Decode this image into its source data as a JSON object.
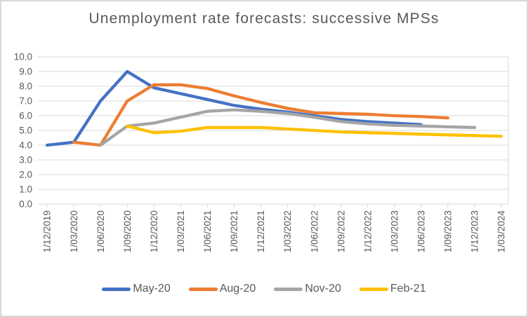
{
  "frame": {
    "background": "#FFFFFF",
    "border_color": "#D9D9D9"
  },
  "chart_data": {
    "type": "line",
    "title": "Unemployment rate forecasts: successive MPSs",
    "categories": [
      "1/12/2019",
      "1/03/2020",
      "1/06/2020",
      "1/09/2020",
      "1/12/2020",
      "1/03/2021",
      "1/06/2021",
      "1/09/2021",
      "1/12/2021",
      "1/03/2022",
      "1/06/2022",
      "1/09/2022",
      "1/12/2022",
      "1/03/2023",
      "1/06/2023",
      "1/09/2023",
      "1/12/2023",
      "1/03/2024"
    ],
    "y_tick_labels": [
      "10.0",
      "9.0",
      "8.0",
      "7.0",
      "6.0",
      "5.0",
      "4.0",
      "3.0",
      "2.0",
      "1.0",
      "0.0"
    ],
    "ylim": [
      0,
      10
    ],
    "grid": true,
    "legend_position": "bottom",
    "series": [
      {
        "name": "May-20",
        "color": "#4472C4",
        "start_index": 0,
        "values": [
          4.0,
          4.2,
          7.0,
          9.0,
          7.9,
          7.5,
          7.1,
          6.7,
          6.45,
          6.25,
          6.0,
          5.75,
          5.6,
          5.5,
          5.4
        ]
      },
      {
        "name": "Aug-20",
        "color": "#ED7D31",
        "start_index": 1,
        "values": [
          4.2,
          4.0,
          7.0,
          8.1,
          8.1,
          7.85,
          7.35,
          6.9,
          6.5,
          6.2,
          6.15,
          6.1,
          6.0,
          5.95,
          5.85
        ]
      },
      {
        "name": "Nov-20",
        "color": "#A5A5A5",
        "start_index": 2,
        "values": [
          4.0,
          5.3,
          5.5,
          5.9,
          6.3,
          6.4,
          6.3,
          6.15,
          5.9,
          5.6,
          5.45,
          5.35,
          5.3,
          5.25,
          5.2
        ]
      },
      {
        "name": "Feb-21",
        "color": "#FFC000",
        "start_index": 3,
        "values": [
          5.3,
          4.85,
          4.95,
          5.2,
          5.2,
          5.2,
          5.1,
          5.0,
          4.9,
          4.85,
          4.8,
          4.75,
          4.7,
          4.65,
          4.6
        ]
      }
    ],
    "colors": {
      "grid": "#D9D9D9",
      "axis": "#D9D9D9",
      "tick_text": "#595959",
      "title_text": "#595959",
      "legend_text": "#595959"
    }
  }
}
